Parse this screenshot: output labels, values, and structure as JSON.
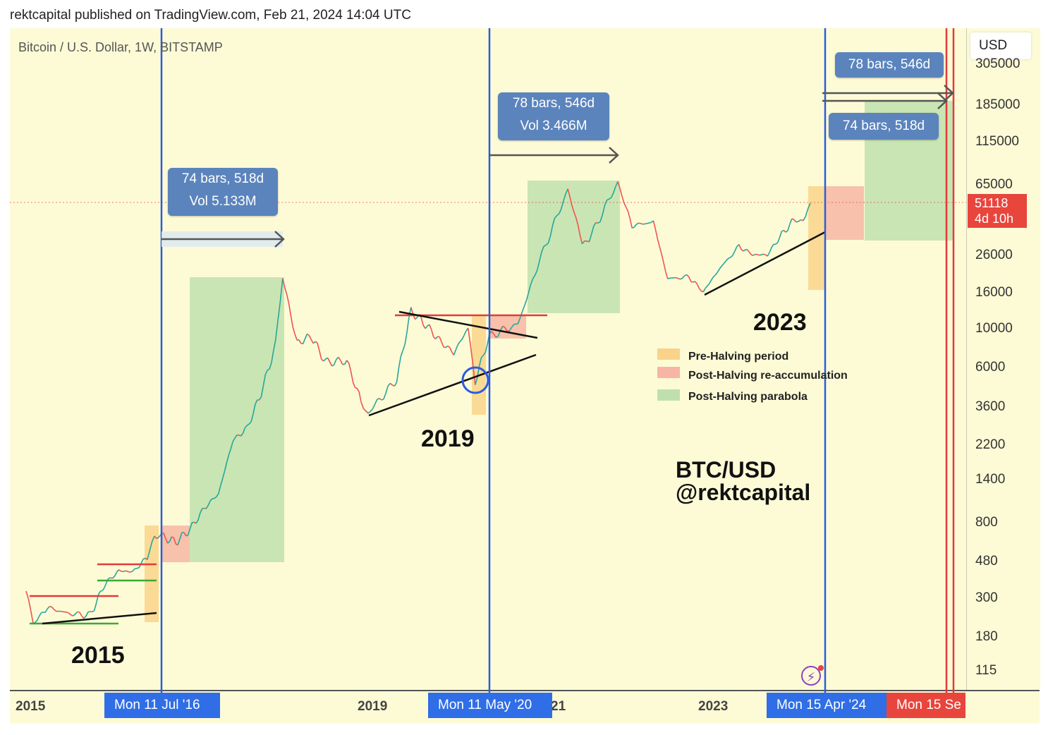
{
  "header": {
    "published": "rektcapital published on TradingView.com, Feb 21, 2024 14:04 UTC"
  },
  "chart_data": {
    "type": "line",
    "title": "Bitcoin / U.S. Dollar, 1W, BITSTAMP",
    "currency": "USD",
    "scale": "log",
    "ylim": [
      100,
      320000
    ],
    "y_ticks": [
      "305000",
      "185000",
      "115000",
      "65000",
      "26000",
      "16000",
      "10000",
      "6000",
      "3600",
      "2200",
      "1400",
      "800",
      "480",
      "300",
      "180",
      "115"
    ],
    "x_ticks": [
      "2015",
      "2019",
      "2023"
    ],
    "x_ticks_partial": [
      "21"
    ],
    "current_price": "51118",
    "countdown": "4d 10h",
    "series": [
      {
        "values": [
          [
            "2014-12",
            320
          ],
          [
            "2015-01",
            210
          ],
          [
            "2015-03",
            260
          ],
          [
            "2015-06",
            240
          ],
          [
            "2015-09",
            235
          ],
          [
            "2015-11",
            350
          ],
          [
            "2016-01",
            420
          ],
          [
            "2016-03",
            415
          ],
          [
            "2016-05",
            500
          ],
          [
            "2016-06",
            680
          ],
          [
            "2016-07",
            660
          ],
          [
            "2016-09",
            610
          ],
          [
            "2016-11",
            720
          ],
          [
            "2017-01",
            950
          ],
          [
            "2017-03",
            1150
          ],
          [
            "2017-05",
            2300
          ],
          [
            "2017-07",
            2700
          ],
          [
            "2017-09",
            4300
          ],
          [
            "2017-11",
            8000
          ],
          [
            "2017-12",
            19500
          ],
          [
            "2018-02",
            8200
          ],
          [
            "2018-04",
            9000
          ],
          [
            "2018-06",
            6400
          ],
          [
            "2018-09",
            6500
          ],
          [
            "2018-11",
            3800
          ],
          [
            "2018-12",
            3300
          ],
          [
            "2019-04",
            5100
          ],
          [
            "2019-06",
            12500
          ],
          [
            "2019-08",
            10500
          ],
          [
            "2019-10",
            8500
          ],
          [
            "2019-12",
            7200
          ],
          [
            "2020-02",
            10000
          ],
          [
            "2020-03",
            5000
          ],
          [
            "2020-05",
            9000
          ],
          [
            "2020-09",
            10500
          ],
          [
            "2020-12",
            24000
          ],
          [
            "2021-04",
            61000
          ],
          [
            "2021-06",
            31000
          ],
          [
            "2021-07",
            32000
          ],
          [
            "2021-11",
            67000
          ],
          [
            "2022-01",
            38000
          ],
          [
            "2022-04",
            40000
          ],
          [
            "2022-06",
            19000
          ],
          [
            "2022-09",
            19500
          ],
          [
            "2022-11",
            16000
          ],
          [
            "2023-01",
            21000
          ],
          [
            "2023-04",
            29000
          ],
          [
            "2023-06",
            26000
          ],
          [
            "2023-08",
            26000
          ],
          [
            "2023-10",
            34000
          ],
          [
            "2023-12",
            42000
          ],
          [
            "2024-01",
            41000
          ],
          [
            "2024-02",
            51118
          ]
        ]
      }
    ],
    "halvings": [
      "Mon 11 Jul '16",
      "Mon 11 May '20",
      "Mon 15 Apr '24"
    ],
    "future_marker": "Mon 15 Se",
    "measures": [
      {
        "line1": "74 bars, 518d",
        "line2": "Vol 5.133M"
      },
      {
        "line1": "78 bars, 546d",
        "line2": "Vol 3.466M"
      },
      {
        "line1": "78 bars, 546d",
        "line2": ""
      },
      {
        "line1": "74 bars, 518d",
        "line2": ""
      }
    ],
    "cycle_labels": [
      "2015",
      "2019",
      "2023"
    ],
    "legend": [
      {
        "label": "Pre-Halving period",
        "color": "#f9d38a"
      },
      {
        "label": "Post-Halving re-accumulation",
        "color": "#f6b6a3"
      },
      {
        "label": "Post-Halving parabola",
        "color": "#bfe0ad"
      }
    ],
    "watermark": [
      "BTC/USD",
      "@rektcapital"
    ],
    "colors": {
      "up": "#26a69a",
      "down": "#ef5350",
      "halving_line": "#2b5cde",
      "future_line": "#e33a3a",
      "date_label": "#2f6ee6",
      "future_label": "#e8453c",
      "price_box": "#e8453c",
      "callout": "#5b84bd",
      "background": "#fdfbd6"
    },
    "icons": [
      "lightning-icon"
    ]
  }
}
